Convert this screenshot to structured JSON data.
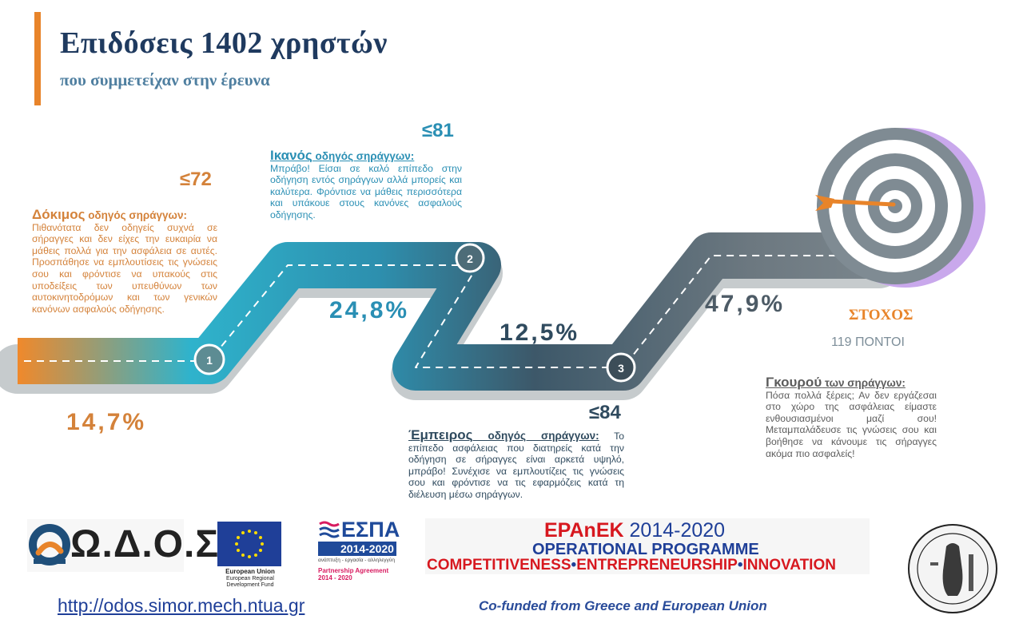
{
  "header": {
    "title": "Επιδόσεις 1402 χρηστών",
    "subtitle": "που συμμετείχαν στην έρευνα"
  },
  "levels": [
    {
      "score": "≤72",
      "percent": "14,7%",
      "step": "1",
      "name": "Δόκιμος",
      "rest": " οδηγός σηράγγων:",
      "text": "Πιθανότατα δεν οδηγείς συχνά σε σήραγγες και δεν είχες την ευκαιρία να μάθεις πολλά για την ασφάλεια σε αυτές. Προσπάθησε να εμπλουτίσεις τις γνώσεις σου και φρόντισε να υπακούς στις υποδείξεις των υπευθύνων των αυτοκινητοδρόμων και των γενικών κανόνων ασφαλούς οδήγησης.",
      "color": "#d4823a"
    },
    {
      "score": "≤81",
      "percent": "24,8%",
      "step": "2",
      "name": "Ικανός",
      "rest": " οδηγός σηράγγων:",
      "text": "Μπράβο! Είσαι σε καλό επίπεδο στην οδήγηση εντός σηράγγων αλλά μπορείς και καλύτερα. Φρόντισε να μάθεις περισσότερα και υπάκουε στους κανόνες ασφαλούς οδήγησης.",
      "color": "#2a8fb4"
    },
    {
      "score": "≤84",
      "percent": "12,5%",
      "step": "3",
      "name": "Έμπειρος",
      "rest": " οδηγός σηράγγων:",
      "text": " Το επίπεδο ασφάλειας που διατηρείς κατά την οδήγηση σε σήραγγες είναι αρκετά υψηλό, μπράβο! Συνέχισε να εμπλουτίζεις τις γνώσεις σου και φρόντισε να τις εφαρμόζεις κατά τη διέλευση μέσω σηράγγων.",
      "color": "#2f4a5e"
    },
    {
      "percent": "47,9%",
      "name": "Γκουρού",
      "rest": " των σηράγγων:",
      "text": "Πόσα πολλά ξέρεις; Αν δεν εργάζεσαι στο χώρο της ασφάλειας είμαστε ενθουσιασμένοι μαζί σου! Μεταμπαλάδευσε τις γνώσεις σου και βοήθησε να κάνουμε τις σήραγγες ακόμα πιο ασφαλείς!",
      "color": "#5c5c5c"
    }
  ],
  "goal": {
    "label": "ΣΤΟΧΟΣ",
    "points": "119 ΠΟΝΤΟΙ",
    "icon": "target-icon"
  },
  "footer": {
    "odos_logo": "Ω.Δ.Ο.Σ",
    "eu_name": "European Union",
    "eu_fund": "European Regional Development Fund",
    "espa_title": "ΕΣΠΑ",
    "espa_years": "2014-2020",
    "espa_sub": "ανάπτυξη - εργασία - αλληλεγγύη",
    "espa_pa": "Partnership Agreement",
    "espa_pa_years": "2014 - 2020",
    "epanek_name": "EPAnEK",
    "epanek_years": " 2014-2020",
    "op_line": "OPERATIONAL PROGRAMME",
    "cei_1": "COMPETITIVENESS",
    "sep": "•",
    "cei_2": "ENTREPRENEURSHIP",
    "cei_3": "INNOVATION",
    "url": "http://odos.simor.mech.ntua.gr",
    "cofund": "Co-funded from Greece and European Union"
  },
  "colors": {
    "accent": "#e8842a",
    "navy": "#1f3a5f",
    "road_teal": "#2eb6d0",
    "road_slate": "#5a6770",
    "target_ring": "#7f8b93",
    "target_shadow": "#c9a8ec"
  }
}
